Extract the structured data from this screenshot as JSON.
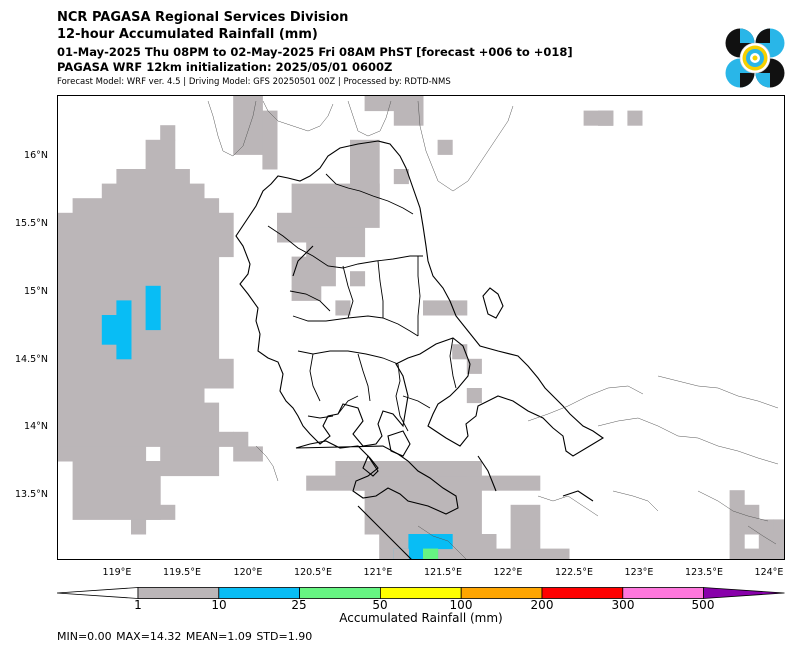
{
  "header": {
    "line1": "NCR PAGASA Regional Services Division",
    "line2": "12-hour Accumulated Rainfall (mm)",
    "line3": "01-May-2025 Thu 08PM to 02-May-2025 Fri 08AM PhST [forecast +006 to +018]",
    "line4": "PAGASA WRF 12km initialization: 2025/05/01 0600Z",
    "line5": "Forecast Model: WRF ver. 4.5 | Driving Model: GFS 20250501 00Z | Processed by: RDTD-NMS"
  },
  "logo": {
    "icon": "pagasa-logo-icon",
    "colors": [
      "#111111",
      "#29b6e8",
      "#f5d000"
    ]
  },
  "map": {
    "lat_labels": [
      "16°N",
      "15.5°N",
      "15°N",
      "14.5°N",
      "14°N",
      "13.5°N"
    ],
    "lon_labels": [
      "119°E",
      "119.5°E",
      "120°E",
      "120.5°E",
      "121°E",
      "121.5°E",
      "122°E",
      "122.5°E",
      "123°E",
      "123.5°E",
      "124°E"
    ],
    "rain_colors": {
      "1-10": "#bbb6b8",
      "10-25": "#08bdf5",
      "25-50": "#66f582"
    }
  },
  "colorbar": {
    "ticks": [
      "1",
      "10",
      "25",
      "50",
      "100",
      "200",
      "300",
      "500"
    ],
    "colors": [
      "#ffffff",
      "#bbb6b8",
      "#08bdf5",
      "#66f582",
      "#ffff00",
      "#ffa500",
      "#ff0000",
      "#ff77dd",
      "#8800aa"
    ],
    "title": "Accumulated Rainfall (mm)"
  },
  "stats": {
    "text": "MIN=0.00   MAX=14.32   MEAN=1.09   STD=1.90"
  }
}
